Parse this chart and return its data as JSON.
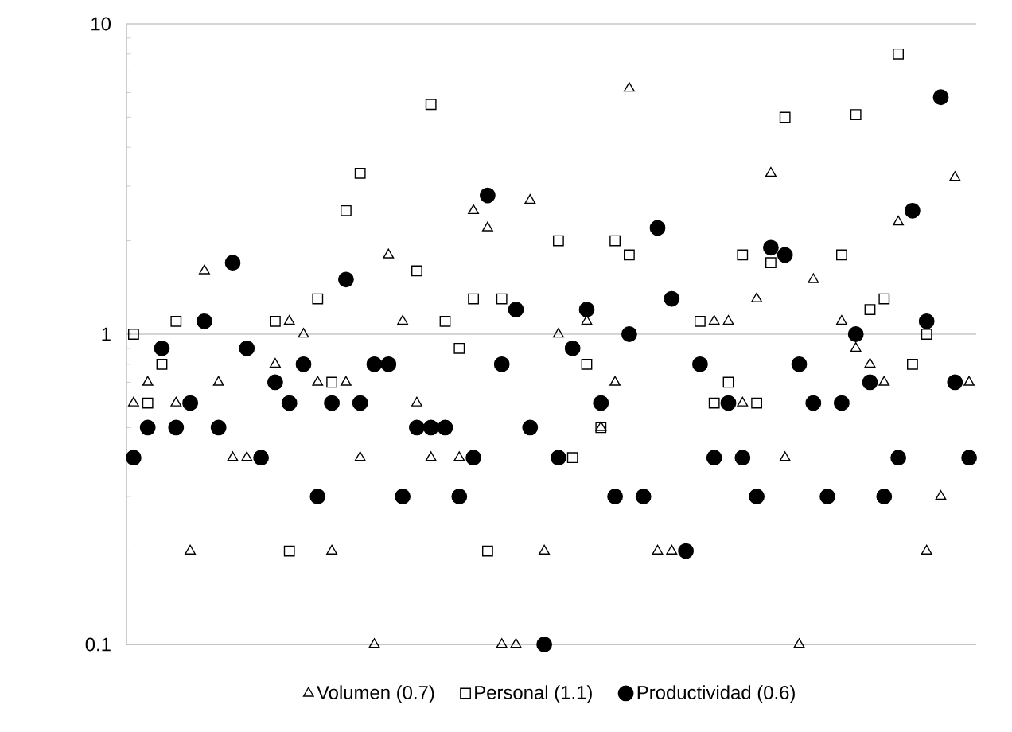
{
  "chart_data": {
    "type": "scatter",
    "categories": [
      null,
      null,
      null,
      null,
      null,
      null,
      null,
      null,
      null,
      null,
      null,
      null,
      null,
      null,
      null,
      null,
      null,
      null,
      null,
      null,
      null,
      null,
      null,
      null,
      null,
      null,
      null,
      null,
      null,
      null,
      null,
      null,
      null,
      null,
      null,
      null,
      null,
      null,
      null,
      null,
      null,
      null,
      null,
      null,
      null,
      null,
      null,
      null,
      null,
      null,
      null,
      null,
      null,
      null,
      null,
      null,
      null,
      null,
      null,
      null
    ],
    "series": [
      {
        "name": "Volumen (0.7)",
        "color": "#000000",
        "marker": "triangle",
        "values": [
          0.6,
          0.7,
          null,
          0.6,
          0.2,
          1.6,
          0.7,
          0.4,
          0.4,
          null,
          0.8,
          1.1,
          1.0,
          0.7,
          0.2,
          0.7,
          0.4,
          0.1,
          1.8,
          1.1,
          0.6,
          0.4,
          null,
          0.4,
          2.5,
          2.2,
          0.1,
          0.1,
          2.7,
          0.2,
          1.0,
          null,
          1.1,
          0.5,
          0.7,
          6.2,
          null,
          0.2,
          0.2,
          null,
          null,
          1.1,
          1.1,
          0.6,
          1.3,
          3.3,
          0.4,
          0.1,
          1.5,
          null,
          1.1,
          0.9,
          0.8,
          0.7,
          2.3,
          null,
          0.2,
          0.3,
          3.2,
          0.7
        ]
      },
      {
        "name": "Personal (1.1)",
        "color": "#000000",
        "marker": "square",
        "values": [
          1.0,
          0.6,
          0.8,
          1.1,
          null,
          null,
          null,
          null,
          null,
          null,
          1.1,
          0.2,
          null,
          1.3,
          0.7,
          2.5,
          3.3,
          null,
          null,
          null,
          1.6,
          5.5,
          1.1,
          0.9,
          1.3,
          0.2,
          1.3,
          null,
          null,
          null,
          2.0,
          0.4,
          0.8,
          0.5,
          2.0,
          1.8,
          null,
          null,
          null,
          null,
          1.1,
          0.6,
          0.7,
          1.8,
          0.6,
          1.7,
          5.0,
          null,
          null,
          null,
          1.8,
          5.1,
          1.2,
          1.3,
          8.0,
          0.8,
          1.0,
          null,
          null,
          null
        ]
      },
      {
        "name": "Productividad (0.6)",
        "color": "#000000",
        "marker": "circle",
        "values": [
          0.4,
          0.5,
          0.9,
          0.5,
          0.6,
          1.1,
          0.5,
          1.7,
          0.9,
          0.4,
          0.7,
          0.6,
          0.8,
          0.3,
          0.6,
          1.5,
          0.6,
          0.8,
          0.8,
          0.3,
          0.5,
          0.5,
          0.5,
          0.3,
          0.4,
          2.8,
          0.8,
          1.2,
          0.5,
          0.1,
          0.4,
          0.9,
          1.2,
          0.6,
          0.3,
          1.0,
          0.3,
          2.2,
          1.3,
          0.2,
          0.8,
          0.4,
          0.6,
          0.4,
          0.3,
          1.9,
          1.8,
          0.8,
          0.6,
          0.3,
          0.6,
          1.0,
          0.7,
          0.3,
          0.4,
          2.5,
          1.1,
          5.8,
          0.7,
          0.4
        ]
      }
    ],
    "ylim": [
      0.1,
      10
    ],
    "yticks": [
      0.1,
      1,
      10
    ],
    "log": "y",
    "grid": "y",
    "legend": "bottom",
    "tick_labels": "y"
  }
}
